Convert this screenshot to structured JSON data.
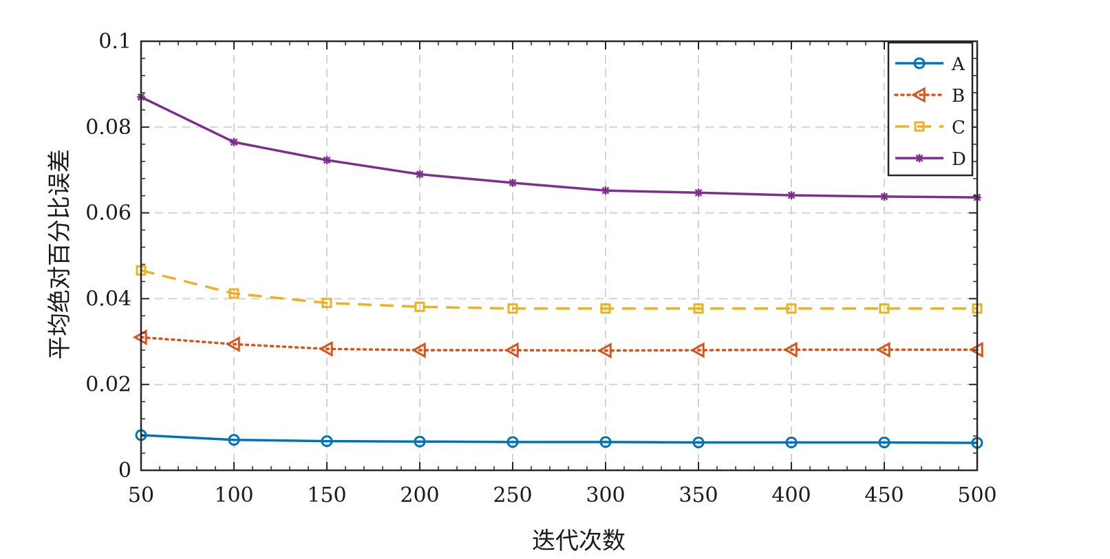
{
  "chart_data": {
    "type": "line",
    "title": "",
    "xlabel": "迭代次数",
    "ylabel": "平均绝对百分比误差",
    "x": [
      50,
      100,
      150,
      200,
      250,
      300,
      350,
      400,
      450,
      500
    ],
    "xlim": [
      50,
      500
    ],
    "ylim": [
      0,
      0.1
    ],
    "xticks": [
      "50",
      "100",
      "150",
      "200",
      "250",
      "300",
      "350",
      "400",
      "450",
      "500"
    ],
    "yticks": [
      "0",
      "0.02",
      "0.04",
      "0.06",
      "0.08",
      "0.1"
    ],
    "ytick_values": [
      0,
      0.02,
      0.04,
      0.06,
      0.08,
      0.1
    ],
    "grid": true,
    "legend_position": "top-right",
    "series": [
      {
        "name": "A",
        "color": "#0072BD",
        "line": "solid",
        "marker": "circle",
        "values": [
          0.0082,
          0.0071,
          0.0068,
          0.0067,
          0.0066,
          0.0066,
          0.0065,
          0.0065,
          0.0065,
          0.0064
        ]
      },
      {
        "name": "B",
        "color": "#D95319",
        "line": "dotted",
        "marker": "triangle-left",
        "values": [
          0.031,
          0.0294,
          0.0283,
          0.028,
          0.028,
          0.0279,
          0.028,
          0.0281,
          0.0281,
          0.0281
        ]
      },
      {
        "name": "C",
        "color": "#EDB120",
        "line": "dashed",
        "marker": "square",
        "values": [
          0.0466,
          0.0412,
          0.039,
          0.0381,
          0.0377,
          0.0377,
          0.0377,
          0.0377,
          0.0377,
          0.0377
        ]
      },
      {
        "name": "D",
        "color": "#7E2F8E",
        "line": "solid",
        "marker": "asterisk",
        "values": [
          0.087,
          0.0765,
          0.0723,
          0.069,
          0.067,
          0.0652,
          0.0647,
          0.0641,
          0.0638,
          0.0636
        ]
      }
    ]
  }
}
